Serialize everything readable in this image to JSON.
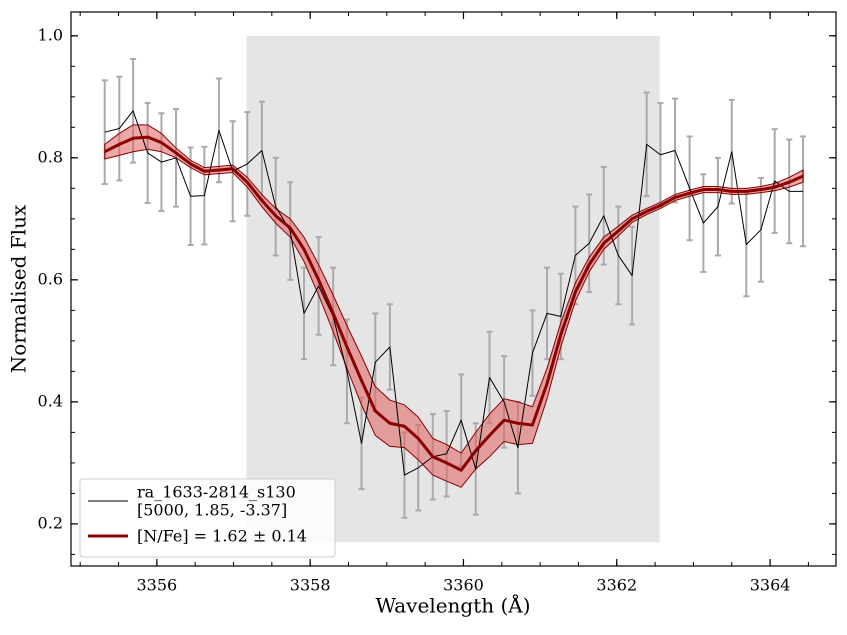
{
  "chart_data": {
    "type": "line",
    "xlabel": "Wavelength (Å)",
    "ylabel": "Normalised Flux",
    "xlim": [
      3354.88,
      3364.86
    ],
    "ylim": [
      0.131,
      1.039
    ],
    "xticks": [
      3356,
      3358,
      3360,
      3362,
      3364
    ],
    "yticks": [
      0.2,
      0.4,
      0.6,
      0.8,
      {
        "value": 1,
        "label": "1.0"
      }
    ],
    "minor_ticks": true,
    "legend": "lower left",
    "span": {
      "x": [
        3357.17,
        3362.56
      ],
      "y": [
        0.17,
        1.0
      ],
      "color": "#e5e5e5"
    },
    "x": [
      3355.32,
      3355.51,
      3355.69,
      3355.88,
      3356.06,
      3356.25,
      3356.44,
      3356.62,
      3356.81,
      3356.99,
      3357.18,
      3357.37,
      3357.55,
      3357.74,
      3357.92,
      3358.11,
      3358.3,
      3358.48,
      3358.67,
      3358.85,
      3359.04,
      3359.23,
      3359.41,
      3359.6,
      3359.78,
      3359.97,
      3360.16,
      3360.34,
      3360.53,
      3360.71,
      3360.9,
      3361.09,
      3361.27,
      3361.46,
      3361.64,
      3361.83,
      3362.02,
      3362.2,
      3362.39,
      3362.57,
      3362.76,
      3362.95,
      3363.13,
      3363.32,
      3363.5,
      3363.69,
      3363.88,
      3364.06,
      3364.25,
      3364.43
    ],
    "series": [
      {
        "name": "ra_1633-2814_s130",
        "params": "[5000, 1.85, -3.37]",
        "color": "#000000",
        "error_color": "#aaaaaa",
        "values": [
          0.842,
          0.848,
          0.877,
          0.808,
          0.793,
          0.8,
          0.737,
          0.738,
          0.845,
          0.778,
          0.79,
          0.812,
          0.72,
          0.68,
          0.545,
          0.59,
          0.54,
          0.45,
          0.332,
          0.465,
          0.49,
          0.28,
          0.292,
          0.31,
          0.315,
          0.37,
          0.29,
          0.44,
          0.4,
          0.325,
          0.48,
          0.545,
          0.54,
          0.64,
          0.66,
          0.705,
          0.64,
          0.607,
          0.822,
          0.805,
          0.812,
          0.75,
          0.693,
          0.72,
          0.81,
          0.658,
          0.682,
          0.762,
          0.745,
          0.745
        ],
        "errors": [
          0.085,
          0.085,
          0.085,
          0.082,
          0.08,
          0.08,
          0.08,
          0.08,
          0.085,
          0.082,
          0.085,
          0.08,
          0.08,
          0.08,
          0.075,
          0.08,
          0.08,
          0.085,
          0.075,
          0.08,
          0.07,
          0.07,
          0.07,
          0.07,
          0.07,
          0.075,
          0.075,
          0.075,
          0.075,
          0.075,
          0.07,
          0.075,
          0.07,
          0.08,
          0.08,
          0.08,
          0.08,
          0.08,
          0.085,
          0.085,
          0.085,
          0.085,
          0.08,
          0.08,
          0.085,
          0.085,
          0.085,
          0.085,
          0.085,
          0.09
        ]
      },
      {
        "name": "[N/Fe] = 1.62 ± 0.14",
        "color": "#8b0000",
        "band_color": "#e06060",
        "values": [
          0.81,
          0.822,
          0.832,
          0.834,
          0.825,
          0.808,
          0.79,
          0.778,
          0.78,
          0.782,
          0.76,
          0.73,
          0.705,
          0.685,
          0.65,
          0.6,
          0.545,
          0.49,
          0.435,
          0.385,
          0.365,
          0.36,
          0.34,
          0.31,
          0.3,
          0.288,
          0.32,
          0.345,
          0.37,
          0.365,
          0.362,
          0.43,
          0.51,
          0.58,
          0.625,
          0.66,
          0.68,
          0.7,
          0.712,
          0.722,
          0.735,
          0.742,
          0.748,
          0.748,
          0.745,
          0.745,
          0.748,
          0.752,
          0.76,
          0.77
        ],
        "band": [
          0.012,
          0.018,
          0.022,
          0.02,
          0.015,
          0.008,
          0.006,
          0.006,
          0.006,
          0.006,
          0.008,
          0.01,
          0.012,
          0.015,
          0.02,
          0.025,
          0.03,
          0.035,
          0.04,
          0.04,
          0.038,
          0.035,
          0.035,
          0.03,
          0.03,
          0.028,
          0.03,
          0.035,
          0.035,
          0.035,
          0.03,
          0.025,
          0.02,
          0.015,
          0.012,
          0.01,
          0.008,
          0.006,
          0.005,
          0.005,
          0.005,
          0.005,
          0.005,
          0.005,
          0.005,
          0.005,
          0.005,
          0.006,
          0.008,
          0.01
        ]
      }
    ]
  }
}
